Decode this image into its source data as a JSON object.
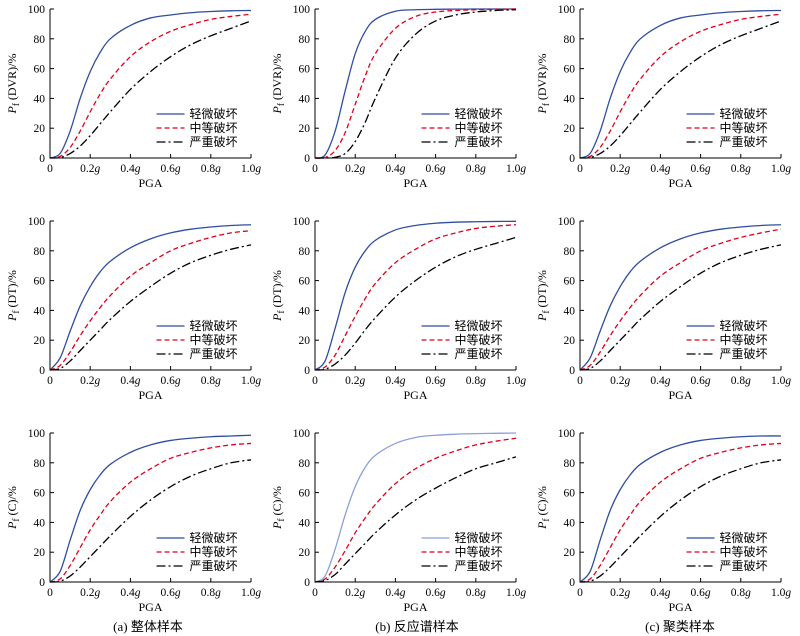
{
  "legend_labels": [
    "轻微破坏",
    "中等破坏",
    "严重破坏"
  ],
  "colors": {
    "slight": "#2f4ea0",
    "slight_light": "#8aa0d8",
    "moderate": "#e0001b",
    "severe": "#000000"
  },
  "line_styles": {
    "slight": "solid",
    "moderate": "dashed",
    "severe": "dashdot"
  },
  "columns": [
    {
      "caption": "(a) 整体样本"
    },
    {
      "caption": "(b) 反应谱样本"
    },
    {
      "caption": "(c) 聚类样本"
    }
  ],
  "rows": [
    {
      "ylabel_main": "P",
      "ylabel_sub": "f",
      "ylabel_rest": " (DVR)/%"
    },
    {
      "ylabel_main": "P",
      "ylabel_sub": "f",
      "ylabel_rest": " (DT)/%"
    },
    {
      "ylabel_main": "P",
      "ylabel_sub": "f",
      "ylabel_rest": " (C)/%"
    }
  ],
  "xlabel": "PGA",
  "x_ticks": [
    "0",
    "0.2g",
    "0.4g",
    "0.6g",
    "0.8g",
    "1.0g"
  ],
  "y_ticks": [
    "0",
    "20",
    "40",
    "60",
    "80",
    "100"
  ],
  "chart_data": [
    {
      "type": "line",
      "panel": "a-DVR",
      "x": [
        0,
        0.05,
        0.1,
        0.15,
        0.2,
        0.25,
        0.3,
        0.4,
        0.5,
        0.6,
        0.7,
        0.8,
        0.9,
        1.0
      ],
      "xlim": [
        0,
        1.0
      ],
      "ylim": [
        0,
        100
      ],
      "grid": false,
      "legend": "bottom-right",
      "series": [
        {
          "name": "轻微破坏",
          "values": [
            0,
            3,
            18,
            40,
            58,
            71,
            80,
            89,
            94,
            96,
            97.5,
            98.3,
            98.8,
            99
          ]
        },
        {
          "name": "中等破坏",
          "values": [
            0,
            1,
            7,
            18,
            31,
            43,
            53,
            68,
            78,
            85,
            89.5,
            93,
            95,
            96.5
          ]
        },
        {
          "name": "严重破坏",
          "values": [
            0,
            0.3,
            3,
            8,
            15,
            23,
            31,
            46,
            58,
            68,
            76,
            82,
            87,
            92
          ]
        }
      ]
    },
    {
      "type": "line",
      "panel": "b-DVR",
      "x": [
        0,
        0.05,
        0.1,
        0.15,
        0.2,
        0.25,
        0.3,
        0.4,
        0.5,
        0.6,
        0.7,
        0.8,
        0.9,
        1.0
      ],
      "xlim": [
        0,
        1.0
      ],
      "ylim": [
        0,
        100
      ],
      "grid": false,
      "legend": "bottom-right",
      "series": [
        {
          "name": "轻微破坏",
          "values": [
            0,
            2,
            18,
            45,
            70,
            85,
            93,
            98.5,
            99.5,
            99.8,
            99.9,
            100,
            100,
            100
          ]
        },
        {
          "name": "中等破坏",
          "values": [
            0,
            0.3,
            5,
            17,
            36,
            55,
            70,
            87,
            95,
            98,
            99,
            99.5,
            99.8,
            100
          ]
        },
        {
          "name": "严重破坏",
          "values": [
            0,
            0,
            0.5,
            3,
            11,
            24,
            40,
            67,
            83,
            92,
            96,
            98,
            99,
            99.5
          ]
        }
      ]
    },
    {
      "type": "line",
      "panel": "c-DVR",
      "x": [
        0,
        0.05,
        0.1,
        0.15,
        0.2,
        0.25,
        0.3,
        0.4,
        0.5,
        0.6,
        0.7,
        0.8,
        0.9,
        1.0
      ],
      "xlim": [
        0,
        1.0
      ],
      "ylim": [
        0,
        100
      ],
      "grid": false,
      "legend": "bottom-right",
      "series": [
        {
          "name": "轻微破坏",
          "values": [
            0,
            3,
            18,
            40,
            58,
            71,
            80,
            89,
            94,
            96,
            97.5,
            98.3,
            98.8,
            99
          ]
        },
        {
          "name": "中等破坏",
          "values": [
            0,
            1,
            7,
            18,
            31,
            43,
            53,
            68,
            78,
            85,
            89.5,
            93,
            95,
            96.5
          ]
        },
        {
          "name": "严重破坏",
          "values": [
            0,
            0.3,
            3,
            8,
            15,
            23,
            31,
            46,
            58,
            68,
            76,
            82,
            87,
            92
          ]
        }
      ]
    },
    {
      "type": "line",
      "panel": "a-DT",
      "x": [
        0,
        0.05,
        0.1,
        0.15,
        0.2,
        0.25,
        0.3,
        0.4,
        0.5,
        0.6,
        0.7,
        0.8,
        0.9,
        1.0
      ],
      "xlim": [
        0,
        1.0
      ],
      "ylim": [
        0,
        100
      ],
      "grid": false,
      "legend": "bottom-right",
      "series": [
        {
          "name": "轻微破坏",
          "values": [
            0,
            8,
            26,
            43,
            56,
            66,
            73,
            82,
            88,
            92,
            94.5,
            96,
            97,
            97.5
          ]
        },
        {
          "name": "中等破坏",
          "values": [
            0,
            3,
            12,
            23,
            33,
            42,
            50,
            63,
            72,
            80,
            85,
            89,
            92,
            93.5
          ]
        },
        {
          "name": "严重破坏",
          "values": [
            0,
            1,
            6,
            13,
            20,
            27,
            34,
            46,
            56,
            65,
            72,
            77,
            81,
            84
          ]
        }
      ]
    },
    {
      "type": "line",
      "panel": "b-DT",
      "x": [
        0,
        0.05,
        0.1,
        0.15,
        0.2,
        0.25,
        0.3,
        0.4,
        0.5,
        0.6,
        0.7,
        0.8,
        0.9,
        1.0
      ],
      "xlim": [
        0,
        1.0
      ],
      "ylim": [
        0,
        100
      ],
      "grid": false,
      "legend": "bottom-right",
      "series": [
        {
          "name": "轻微破坏",
          "values": [
            0,
            6,
            28,
            52,
            69,
            80,
            87,
            94,
            97,
            98.5,
            99.2,
            99.5,
            99.7,
            99.8
          ]
        },
        {
          "name": "中等破坏",
          "values": [
            0,
            2,
            10,
            23,
            36,
            48,
            58,
            72,
            81,
            88,
            92,
            95,
            96.5,
            97.5
          ]
        },
        {
          "name": "严重破坏",
          "values": [
            0,
            0.5,
            4,
            10,
            18,
            27,
            35,
            49,
            60,
            69,
            76,
            81,
            85,
            89
          ]
        }
      ]
    },
    {
      "type": "line",
      "panel": "c-DT",
      "x": [
        0,
        0.05,
        0.1,
        0.15,
        0.2,
        0.25,
        0.3,
        0.4,
        0.5,
        0.6,
        0.7,
        0.8,
        0.9,
        1.0
      ],
      "xlim": [
        0,
        1.0
      ],
      "ylim": [
        0,
        100
      ],
      "grid": false,
      "legend": "bottom-right",
      "series": [
        {
          "name": "轻微破坏",
          "values": [
            0,
            8,
            26,
            43,
            56,
            66,
            73,
            82,
            88,
            92,
            94.5,
            96,
            97,
            97.5
          ]
        },
        {
          "name": "中等破坏",
          "values": [
            0,
            3,
            12,
            23,
            33,
            42,
            50,
            63,
            72,
            80,
            85,
            89,
            92,
            94.5
          ]
        },
        {
          "name": "严重破坏",
          "values": [
            0,
            1,
            6,
            13,
            20,
            27,
            34,
            46,
            56,
            65,
            72,
            77,
            81,
            84
          ]
        }
      ]
    },
    {
      "type": "line",
      "panel": "a-C",
      "x": [
        0,
        0.05,
        0.1,
        0.15,
        0.2,
        0.25,
        0.3,
        0.4,
        0.5,
        0.6,
        0.7,
        0.8,
        0.9,
        1.0
      ],
      "xlim": [
        0,
        1.0
      ],
      "ylim": [
        0,
        100
      ],
      "grid": false,
      "legend": "bottom-right",
      "series": [
        {
          "name": "轻微破坏",
          "values": [
            0,
            7,
            28,
            48,
            62,
            72,
            79,
            87,
            92,
            95,
            96.5,
            97.5,
            98,
            98.5
          ]
        },
        {
          "name": "中等破坏",
          "values": [
            0,
            2,
            11,
            23,
            35,
            45,
            54,
            67,
            76,
            83,
            87,
            90,
            92,
            93
          ]
        },
        {
          "name": "严重破坏",
          "values": [
            0,
            0.5,
            4,
            10,
            17,
            24,
            31,
            44,
            55,
            64,
            71,
            76,
            80,
            82
          ]
        }
      ]
    },
    {
      "type": "line",
      "panel": "b-C",
      "x": [
        0,
        0.05,
        0.1,
        0.15,
        0.2,
        0.25,
        0.3,
        0.4,
        0.5,
        0.6,
        0.7,
        0.8,
        0.9,
        1.0
      ],
      "xlim": [
        0,
        1.0
      ],
      "ylim": [
        0,
        100
      ],
      "grid": false,
      "legend": "bottom-right",
      "series": [
        {
          "name": "轻微破坏",
          "values": [
            0,
            4,
            22,
            45,
            64,
            77,
            85,
            93,
            97,
            98.5,
            99.2,
            99.6,
            99.8,
            100
          ]
        },
        {
          "name": "中等破坏",
          "values": [
            0,
            2,
            10,
            21,
            33,
            43,
            52,
            66,
            76,
            83,
            88,
            92,
            94.5,
            96.5
          ]
        },
        {
          "name": "严重破坏",
          "values": [
            0,
            1,
            5,
            12,
            19,
            26,
            33,
            45,
            55,
            63,
            70,
            76,
            80,
            84
          ]
        }
      ]
    },
    {
      "type": "line",
      "panel": "c-C",
      "x": [
        0,
        0.05,
        0.1,
        0.15,
        0.2,
        0.25,
        0.3,
        0.4,
        0.5,
        0.6,
        0.7,
        0.8,
        0.9,
        1.0
      ],
      "xlim": [
        0,
        1.0
      ],
      "ylim": [
        0,
        100
      ],
      "grid": false,
      "legend": "bottom-right",
      "series": [
        {
          "name": "轻微破坏",
          "values": [
            0,
            7,
            28,
            48,
            62,
            72,
            79,
            87,
            92,
            95,
            96.5,
            97.5,
            98,
            98
          ]
        },
        {
          "name": "中等破坏",
          "values": [
            0,
            2,
            11,
            23,
            35,
            45,
            54,
            67,
            76,
            83,
            87,
            90,
            92,
            93
          ]
        },
        {
          "name": "严重破坏",
          "values": [
            0,
            0.5,
            4,
            10,
            17,
            24,
            31,
            44,
            55,
            64,
            71,
            76,
            80,
            82
          ]
        }
      ]
    }
  ]
}
